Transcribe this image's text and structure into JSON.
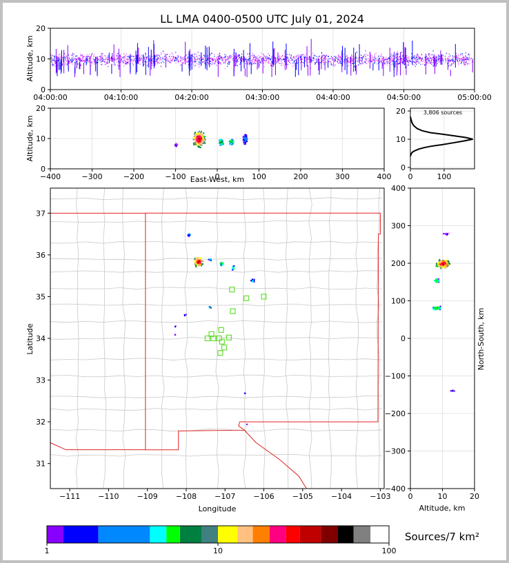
{
  "title": "LL LMA 0400-0500 UTC July 01, 2024",
  "chart_data": [
    {
      "type": "scatter",
      "panel": "altitude-time",
      "ylabel": "Altitude, km",
      "xlabel": "",
      "ylim": [
        0,
        20
      ],
      "yticks": [
        "0",
        "10",
        "20"
      ],
      "xticks": [
        "04:00:00",
        "04:10:00",
        "04:20:00",
        "04:30:00",
        "04:40:00",
        "04:50:00",
        "05:00:00"
      ],
      "note": "VHF sources from ~2 to ~19 km, concentrated 7–13 km throughout the hour"
    },
    {
      "type": "scatter",
      "panel": "altitude-east-west",
      "xlabel": "East-West, km",
      "ylabel": "Altitude, km",
      "xlim": [
        -400,
        400
      ],
      "ylim": [
        0,
        20
      ],
      "xticks": [
        "−400",
        "−300",
        "−200",
        "−100",
        "0",
        "100",
        "200",
        "300",
        "400"
      ],
      "yticks": [
        "0",
        "10",
        "20"
      ],
      "clusters": [
        {
          "x": -45,
          "z": 10
        },
        {
          "x": 8,
          "z": 9
        },
        {
          "x": 33,
          "z": 9
        },
        {
          "x": 65,
          "z": 10
        }
      ]
    },
    {
      "type": "line",
      "panel": "altitude-histogram",
      "annotation": "3,806 sources",
      "xlim": [
        0,
        190
      ],
      "ylim": [
        0,
        21
      ],
      "xticks": [
        "0",
        "100"
      ],
      "yticks": [
        "0",
        "10",
        "20"
      ],
      "x": [
        0,
        3,
        8,
        15,
        25,
        40,
        60,
        90,
        120,
        155,
        185,
        165,
        130,
        95,
        60,
        35,
        20,
        10,
        5,
        2,
        0
      ],
      "z": [
        4,
        5,
        5.6,
        6,
        6.5,
        7,
        7.5,
        8,
        8.6,
        9.3,
        10,
        10.6,
        11.2,
        11.8,
        12.3,
        13,
        13.8,
        14.8,
        15.8,
        17,
        18
      ]
    },
    {
      "type": "heatmap",
      "panel": "plan-view-map",
      "xlabel": "Longitude",
      "ylabel": "Latitude",
      "xlim": [
        -111.5,
        -102.9
      ],
      "ylim": [
        30.4,
        37.6
      ],
      "xticks": [
        "−111",
        "−110",
        "−109",
        "−108",
        "−107",
        "−106",
        "−105",
        "−104",
        "−103"
      ],
      "yticks": [
        "31",
        "32",
        "33",
        "34",
        "35",
        "36",
        "37"
      ],
      "clusters": [
        {
          "lon": -107.7,
          "lat": 35.85
        },
        {
          "lon": -107.1,
          "lat": 35.8
        },
        {
          "lon": -106.8,
          "lat": 35.7
        },
        {
          "lon": -107.95,
          "lat": 36.5
        },
        {
          "lon": -107.4,
          "lat": 35.9
        },
        {
          "lon": -106.3,
          "lat": 35.4
        },
        {
          "lon": -107.4,
          "lat": 34.75
        },
        {
          "lon": -108.05,
          "lat": 34.57
        },
        {
          "lon": -108.3,
          "lat": 34.3
        },
        {
          "lon": -108.3,
          "lat": 34.1
        },
        {
          "lon": -106.5,
          "lat": 32.7
        },
        {
          "lon": -106.45,
          "lat": 31.95
        }
      ],
      "stations": [
        {
          "lon": -106.82,
          "lat": 35.17
        },
        {
          "lon": -106.45,
          "lat": 34.96
        },
        {
          "lon": -106.0,
          "lat": 35.0
        },
        {
          "lon": -106.8,
          "lat": 34.65
        },
        {
          "lon": -107.1,
          "lat": 34.2
        },
        {
          "lon": -107.35,
          "lat": 34.1
        },
        {
          "lon": -107.45,
          "lat": 34.0
        },
        {
          "lon": -107.3,
          "lat": 34.0
        },
        {
          "lon": -107.15,
          "lat": 34.0
        },
        {
          "lon": -106.9,
          "lat": 34.02
        },
        {
          "lon": -107.08,
          "lat": 33.92
        },
        {
          "lon": -107.02,
          "lat": 33.78
        },
        {
          "lon": -107.12,
          "lat": 33.65
        }
      ]
    },
    {
      "type": "scatter",
      "panel": "north-south-altitude",
      "xlabel": "Altitude, km",
      "ylabel": "North-South, km",
      "xlim": [
        0,
        20
      ],
      "ylim": [
        -400,
        400
      ],
      "xticks": [
        "0",
        "10",
        "20"
      ],
      "yticks": [
        "−400",
        "−300",
        "−200",
        "−100",
        "0",
        "100",
        "200",
        "300",
        "400"
      ],
      "clusters": [
        {
          "z": 10,
          "y": 200
        },
        {
          "z": 8,
          "y": 155
        },
        {
          "z": 8,
          "y": 82
        },
        {
          "z": 13,
          "y": -138
        },
        {
          "z": 11,
          "y": 280
        }
      ]
    }
  ],
  "colorbar": {
    "label": "Sources/7 km²",
    "ticks": [
      "1",
      "10",
      "100"
    ],
    "colors": [
      "#ff55ff",
      "#8800ff",
      "#0000ff",
      "#0088ff",
      "#00ffff",
      "#00ff00",
      "#008040",
      "#408080",
      "#ffff00",
      "#ffc080",
      "#ff8000",
      "#ff0080",
      "#ff0000",
      "#c00000",
      "#800000",
      "#000000",
      "#808080",
      "#c0c0c0",
      "#ffffff"
    ]
  }
}
